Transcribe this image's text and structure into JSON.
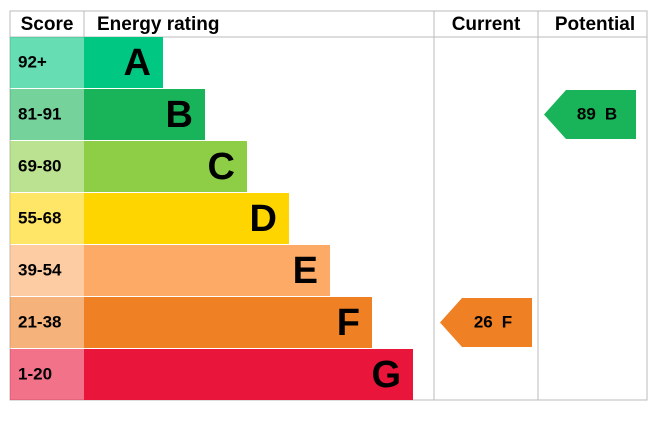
{
  "headers": {
    "score": "Score",
    "rating": "Energy rating",
    "current": "Current",
    "potential": "Potential"
  },
  "bands": [
    {
      "score": "92+",
      "letter": "A",
      "color": "#00c781"
    },
    {
      "score": "81-91",
      "letter": "B",
      "color": "#19b459"
    },
    {
      "score": "69-80",
      "letter": "C",
      "color": "#8dce46"
    },
    {
      "score": "55-68",
      "letter": "D",
      "color": "#ffd500"
    },
    {
      "score": "39-54",
      "letter": "E",
      "color": "#fcaa65"
    },
    {
      "score": "21-38",
      "letter": "F",
      "color": "#ef8023"
    },
    {
      "score": "1-20",
      "letter": "G",
      "color": "#e9153b"
    }
  ],
  "current": {
    "value": 26,
    "letter": "F"
  },
  "potential": {
    "value": 89,
    "letter": "B"
  }
}
